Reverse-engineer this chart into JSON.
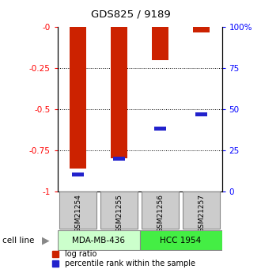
{
  "title": "GDS825 / 9189",
  "samples": [
    "GSM21254",
    "GSM21255",
    "GSM21256",
    "GSM21257"
  ],
  "log_ratio": [
    -0.86,
    -0.8,
    -0.2,
    -0.03
  ],
  "percentile_rank": [
    10,
    20,
    38,
    47
  ],
  "cell_line_groups": [
    {
      "label": "MDA-MB-436",
      "samples": [
        0,
        1
      ],
      "color": "#ccffcc"
    },
    {
      "label": "HCC 1954",
      "samples": [
        2,
        3
      ],
      "color": "#44ee44"
    }
  ],
  "bar_color_red": "#cc2200",
  "bar_color_blue": "#2222cc",
  "ylim_left": [
    -1,
    0
  ],
  "ylim_right": [
    0,
    100
  ],
  "yticks_left": [
    0,
    -0.25,
    -0.5,
    -0.75,
    -1.0
  ],
  "ytick_labels_left": [
    "-0",
    "-0.25",
    "-0.5",
    "-0.75",
    "-1"
  ],
  "yticks_right": [
    0,
    25,
    50,
    75,
    100
  ],
  "ytick_labels_right": [
    "0",
    "25",
    "50",
    "75",
    "100%"
  ],
  "background_color": "#ffffff",
  "sample_label_bg": "#cccccc",
  "cell_line_label_text": "cell line",
  "legend_entries": [
    "log ratio",
    "percentile rank within the sample"
  ]
}
